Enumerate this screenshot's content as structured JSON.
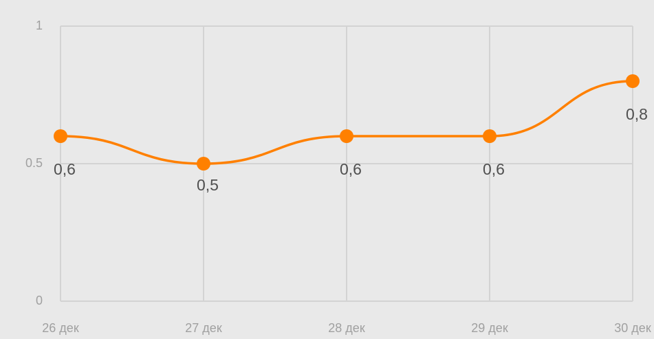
{
  "chart_data": {
    "type": "line",
    "categories": [
      "26 дек",
      "27 дек",
      "28 дек",
      "29 дек",
      "30 дек"
    ],
    "series": [
      {
        "color": "#ff8000",
        "values": [
          0.6,
          0.5,
          0.6,
          0.6,
          0.8
        ],
        "value_labels": [
          "0,6",
          "0,5",
          "0,6",
          "0,6",
          "0,8"
        ]
      }
    ],
    "ylim": [
      0,
      1
    ],
    "yticks": [
      0,
      0.5,
      1
    ],
    "grid": true
  }
}
